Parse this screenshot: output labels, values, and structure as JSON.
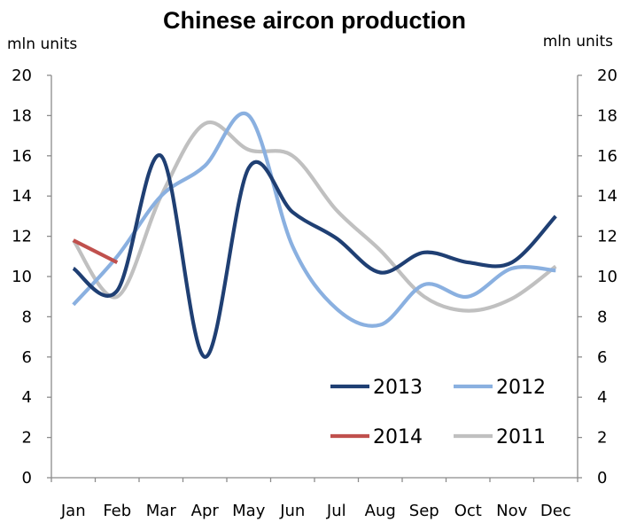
{
  "chart_data": {
    "type": "line",
    "title": "Chinese aircon production",
    "ylabel_left": "mln units",
    "ylabel_right": "mln units",
    "categories": [
      "Jan",
      "Feb",
      "Mar",
      "Apr",
      "May",
      "Jun",
      "Jul",
      "Aug",
      "Sep",
      "Oct",
      "Nov",
      "Dec"
    ],
    "ylim": [
      0,
      20
    ],
    "yticks": [
      "0",
      "2",
      "4",
      "6",
      "8",
      "10",
      "12",
      "14",
      "16",
      "18",
      "20"
    ],
    "grid": false,
    "legend_position": "bottom-right",
    "series": [
      {
        "name": "2013",
        "color": "#1f3f73",
        "values": [
          10.4,
          9.3,
          16.0,
          6.0,
          15.4,
          13.2,
          11.9,
          10.2,
          11.2,
          10.7,
          10.7,
          13.0
        ]
      },
      {
        "name": "2012",
        "color": "#8ab0e0",
        "values": [
          8.6,
          11.0,
          14.0,
          15.5,
          18.0,
          11.5,
          8.4,
          7.6,
          9.6,
          9.0,
          10.4,
          10.3
        ]
      },
      {
        "name": "2014",
        "color": "#c0504d",
        "values": [
          11.8,
          10.7,
          null,
          null,
          null,
          null,
          null,
          null,
          null,
          null,
          null,
          null
        ]
      },
      {
        "name": "2011",
        "color": "#c0c0c0",
        "values": [
          11.8,
          9.0,
          14.0,
          17.6,
          16.3,
          16.0,
          13.3,
          11.3,
          9.0,
          8.3,
          8.9,
          10.5
        ]
      }
    ],
    "legend": [
      {
        "series": "2013",
        "label": "2013"
      },
      {
        "series": "2012",
        "label": "2012"
      },
      {
        "series": "2014",
        "label": "2014"
      },
      {
        "series": "2011",
        "label": "2011"
      }
    ]
  }
}
